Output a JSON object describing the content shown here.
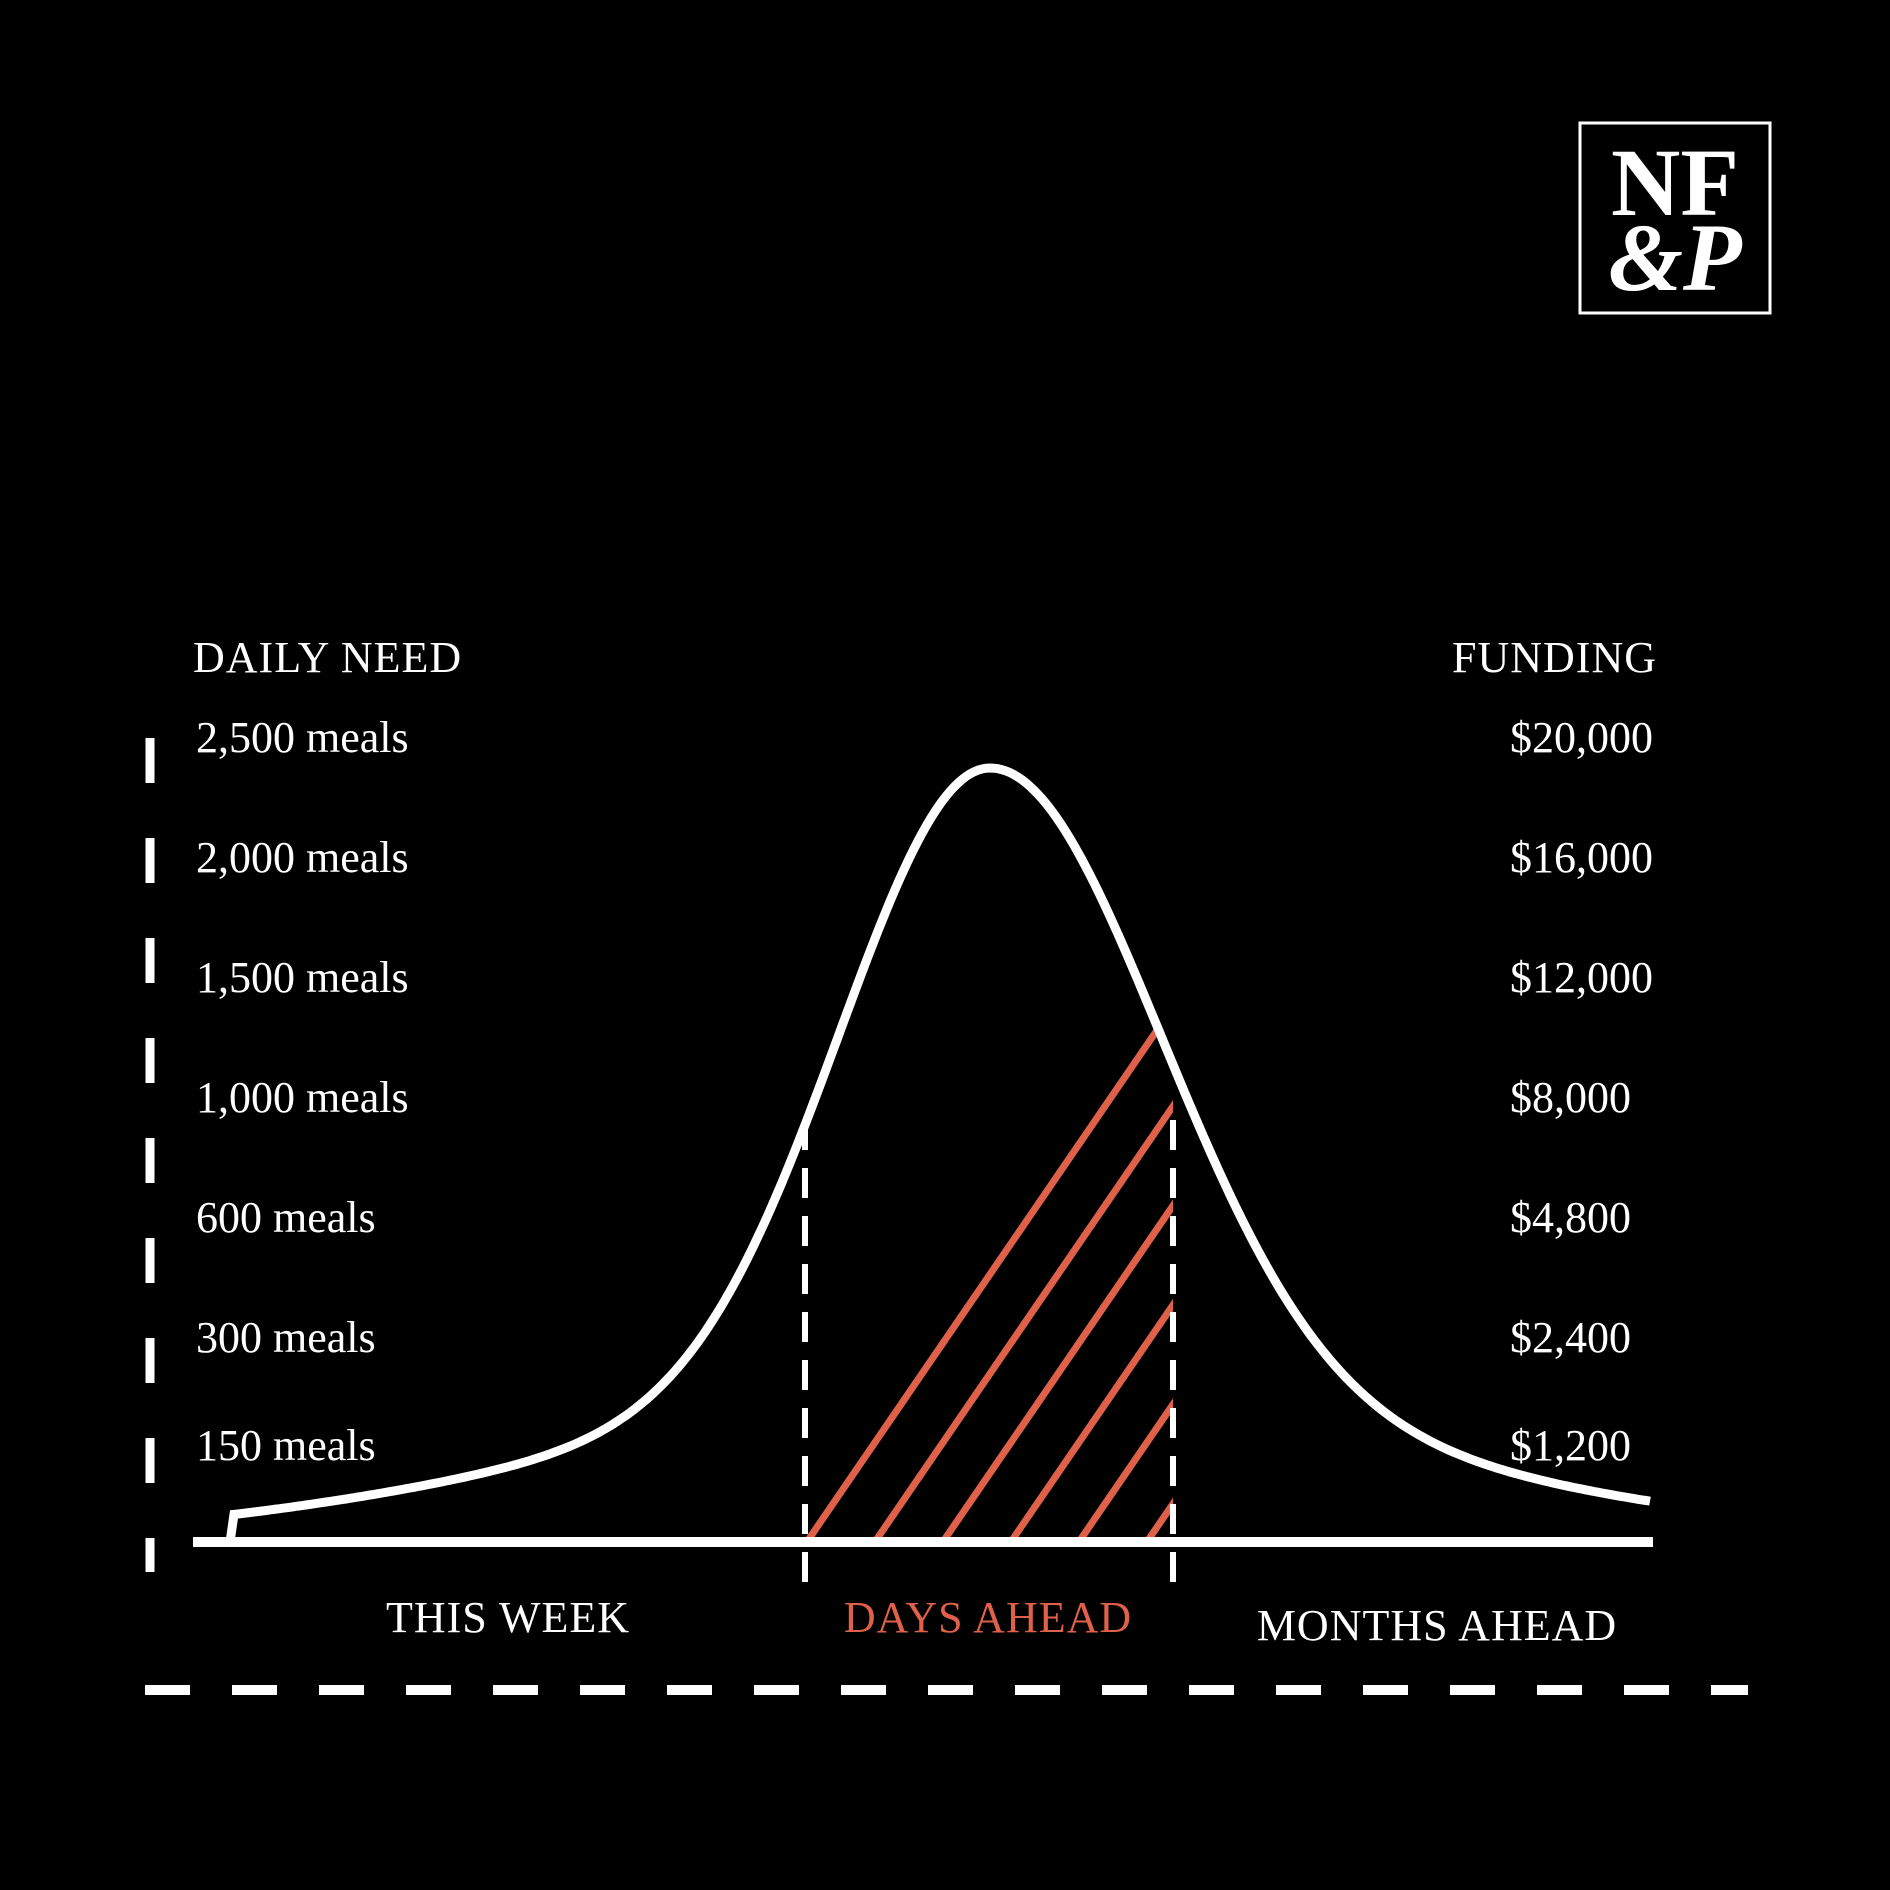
{
  "logo": {
    "line1": "NF",
    "line2": "&P"
  },
  "colors": {
    "background": "#000000",
    "foreground": "#ffffff",
    "accent": "#e0614a"
  },
  "chart_data": {
    "type": "area",
    "left_axis": {
      "title": "DAILY NEED",
      "ticks": [
        "2,500 meals",
        "2,000 meals",
        "1,500 meals",
        "1,000 meals",
        "600 meals",
        "300 meals",
        "150 meals"
      ]
    },
    "right_axis": {
      "title": "FUNDING",
      "ticks": [
        "$20,000",
        "$16,000",
        "$12,000",
        "$8,000",
        "$4,800",
        "$2,400",
        "$1,200"
      ]
    },
    "regions": [
      {
        "label": "THIS WEEK",
        "highlight": false
      },
      {
        "label": "DAYS AHEAD",
        "highlight": true
      },
      {
        "label": "MONTHS AHEAD",
        "highlight": false
      }
    ],
    "curve": "bell",
    "highlighted_region_fill": "diagonal-hatch",
    "grid": false
  }
}
